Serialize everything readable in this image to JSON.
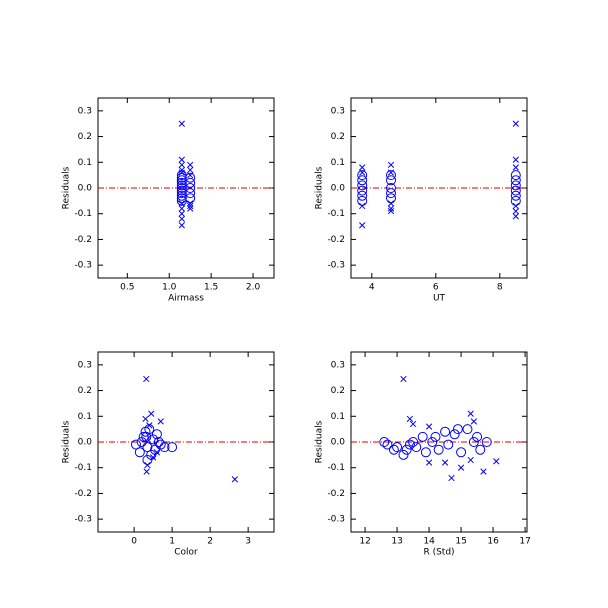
{
  "chart_data": [
    {
      "type": "scatter",
      "xlabel": "Airmass",
      "ylabel": "Residuals",
      "xlim": [
        0.15,
        2.25
      ],
      "ylim": [
        -0.35,
        0.35
      ],
      "xticks": [
        0.5,
        {
          "value": 1,
          "label": "1.0"
        },
        1.5,
        {
          "value": 2,
          "label": "2.0"
        }
      ],
      "yticks": [
        -0.3,
        -0.2,
        -0.1,
        {
          "value": 0,
          "label": "0.0"
        },
        0.1,
        0.2,
        0.3
      ],
      "hline": {
        "value": 0,
        "color": "#dd0000"
      },
      "series": [
        {
          "marker": "circle",
          "color": "#0000ff",
          "x": [
            1.15,
            1.15,
            1.15,
            1.15,
            1.15,
            1.15,
            1.15,
            1.15,
            1.15,
            1.15,
            1.15,
            1.25,
            1.25,
            1.25,
            1.25,
            1.25
          ],
          "values": [
            0.05,
            0.04,
            0.03,
            0.02,
            0.01,
            0,
            -0.01,
            -0.02,
            -0.03,
            -0.04,
            -0.05,
            0.04,
            0.02,
            0,
            -0.02,
            -0.04
          ]
        },
        {
          "marker": "cross",
          "color": "#0000ff",
          "x": [
            1.15,
            1.15,
            1.15,
            1.15,
            1.15,
            1.15,
            1.15,
            1.15,
            1.15,
            1.15,
            1.25,
            1.25,
            1.25,
            1.25,
            1.25,
            1.25
          ],
          "values": [
            0.25,
            0.11,
            0.09,
            0.07,
            0.06,
            -0.06,
            -0.08,
            -0.1,
            -0.12,
            -0.145,
            0.09,
            0.07,
            0.05,
            -0.06,
            -0.07,
            -0.08
          ]
        }
      ]
    },
    {
      "type": "scatter",
      "xlabel": "UT",
      "ylabel": "Residuals",
      "xlim": [
        3.35,
        8.85
      ],
      "ylim": [
        -0.35,
        0.35
      ],
      "xticks": [
        4,
        6,
        8
      ],
      "yticks": [
        -0.3,
        -0.2,
        -0.1,
        {
          "value": 0,
          "label": "0.0"
        },
        0.1,
        0.2,
        0.3
      ],
      "hline": {
        "value": 0,
        "color": "#dd0000"
      },
      "series": [
        {
          "marker": "circle",
          "color": "#0000ff",
          "x": [
            3.7,
            3.7,
            3.7,
            3.7,
            3.7,
            3.7,
            4.6,
            4.6,
            4.6,
            4.6,
            4.6,
            8.5,
            8.5,
            8.5,
            8.5,
            8.5,
            8.5
          ],
          "values": [
            0.05,
            0.03,
            0.01,
            -0.01,
            -0.03,
            -0.05,
            0.05,
            0.03,
            0,
            -0.02,
            -0.04,
            0.05,
            0.03,
            0.01,
            -0.01,
            -0.03,
            -0.05
          ]
        },
        {
          "marker": "cross",
          "color": "#0000ff",
          "x": [
            3.7,
            3.7,
            3.7,
            3.7,
            4.6,
            4.6,
            4.6,
            4.6,
            4.6,
            8.5,
            8.5,
            8.5,
            8.5,
            8.5,
            8.5
          ],
          "values": [
            0.08,
            0.06,
            -0.07,
            -0.145,
            0.09,
            0.06,
            -0.06,
            -0.08,
            -0.09,
            0.25,
            0.11,
            0.08,
            -0.07,
            -0.09,
            -0.11
          ]
        }
      ]
    },
    {
      "type": "scatter",
      "xlabel": "Color",
      "ylabel": "Residuals",
      "xlim": [
        -0.95,
        3.68
      ],
      "ylim": [
        -0.35,
        0.35
      ],
      "xticks": [
        0,
        1,
        2,
        3
      ],
      "yticks": [
        -0.3,
        -0.2,
        -0.1,
        {
          "value": 0,
          "label": "0.0"
        },
        0.1,
        0.2,
        0.3
      ],
      "hline": {
        "value": 0,
        "color": "#dd0000"
      },
      "series": [
        {
          "marker": "circle",
          "color": "#0000ff",
          "x": [
            0.05,
            0.15,
            0.2,
            0.3,
            0.32,
            0.35,
            0.4,
            0.45,
            0.5,
            0.55,
            0.6,
            0.65,
            0.7,
            0.35,
            0.8,
            1.0,
            0.25
          ],
          "values": [
            -0.01,
            -0.04,
            0,
            0.04,
            0.02,
            -0.02,
            0.05,
            -0.05,
            0.01,
            -0.03,
            0.03,
            0,
            -0.01,
            -0.07,
            -0.02,
            -0.02,
            0.02
          ]
        },
        {
          "marker": "cross",
          "color": "#0000ff",
          "x": [
            0.32,
            0.3,
            0.45,
            0.7,
            0.35,
            0.33,
            0.5,
            0.4,
            2.65,
            0.6
          ],
          "values": [
            0.245,
            0.09,
            0.11,
            0.08,
            -0.09,
            -0.115,
            -0.06,
            0.065,
            -0.145,
            -0.04
          ]
        }
      ]
    },
    {
      "type": "scatter",
      "xlabel": "R (Std)",
      "ylabel": "Residuals",
      "xlim": [
        11.56,
        17.06
      ],
      "ylim": [
        -0.35,
        0.35
      ],
      "xticks": [
        12,
        13,
        14,
        15,
        16,
        17
      ],
      "yticks": [
        -0.3,
        -0.2,
        -0.1,
        {
          "value": 0,
          "label": "0.0"
        },
        0.1,
        0.2,
        0.3
      ],
      "hline": {
        "value": 0,
        "color": "#dd0000"
      },
      "series": [
        {
          "marker": "circle",
          "color": "#0000ff",
          "x": [
            12.6,
            12.7,
            12.9,
            13.0,
            13.2,
            13.4,
            13.5,
            13.6,
            13.8,
            13.9,
            14.1,
            14.3,
            14.5,
            14.6,
            14.8,
            14.9,
            15.0,
            15.2,
            15.4,
            15.5,
            15.6,
            15.8,
            14.2,
            13.3
          ],
          "values": [
            0,
            -0.01,
            -0.03,
            -0.02,
            -0.05,
            -0.01,
            0,
            -0.02,
            0.02,
            -0.04,
            0,
            -0.03,
            0.04,
            -0.01,
            0.03,
            0.05,
            -0.04,
            0.05,
            0,
            0.02,
            -0.03,
            0,
            0.02,
            -0.03
          ]
        },
        {
          "marker": "cross",
          "color": "#0000ff",
          "x": [
            13.2,
            13.4,
            13.5,
            14.0,
            14.0,
            14.7,
            15.0,
            15.3,
            15.4,
            15.7,
            16.1,
            15.3,
            14.5
          ],
          "values": [
            0.245,
            0.09,
            0.07,
            0.06,
            -0.08,
            -0.14,
            -0.1,
            0.11,
            0.08,
            -0.115,
            -0.075,
            -0.07,
            -0.08
          ]
        }
      ]
    }
  ]
}
